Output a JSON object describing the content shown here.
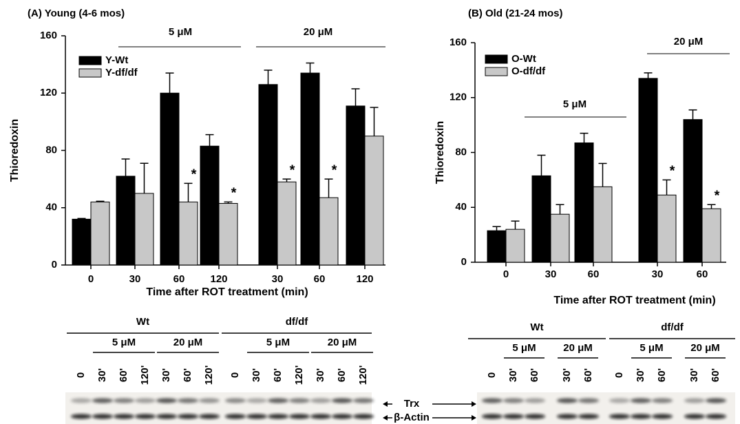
{
  "chart_data": [
    {
      "type": "bar",
      "title": "(A) Young (4-6 mos)",
      "y_label": "Thioredoxin",
      "x_label": "Time after ROT treatment (min)",
      "categories": [
        "0",
        "30",
        "60",
        "120",
        "30",
        "60",
        "120"
      ],
      "annotations": [
        "5 μM",
        "20 μM"
      ],
      "series": [
        {
          "name": "Y-Wt",
          "color": "#000000",
          "values": [
            32,
            62,
            120,
            83,
            126,
            134,
            111
          ],
          "errors": [
            0.5,
            12,
            14,
            8,
            10,
            7,
            12
          ]
        },
        {
          "name": "Y-df/df",
          "color": "#c8c8c8",
          "values": [
            44,
            50,
            44,
            43,
            58,
            47,
            90
          ],
          "errors": [
            0.5,
            21,
            13,
            1,
            2,
            13,
            20
          ],
          "labels": [
            null,
            null,
            "*",
            "*",
            "*",
            "*",
            null
          ]
        }
      ],
      "ylim": [
        0,
        160
      ],
      "yticks": [
        0,
        40,
        80,
        120,
        160
      ]
    },
    {
      "type": "bar",
      "title": "(B) Old (21-24 mos)",
      "y_label": "Thioredoxin",
      "x_label": "Time after ROT treatment (min)",
      "categories": [
        "0",
        "30",
        "60",
        "30",
        "60"
      ],
      "annotations": [
        "5 μM",
        "20 μM"
      ],
      "series": [
        {
          "name": "O-Wt",
          "color": "#000000",
          "values": [
            23,
            63,
            87,
            134,
            104
          ],
          "errors": [
            3,
            15,
            7,
            4,
            7
          ]
        },
        {
          "name": "O-df/df",
          "color": "#c8c8c8",
          "values": [
            24,
            35,
            55,
            49,
            39
          ],
          "errors": [
            6,
            7,
            17,
            11,
            3
          ],
          "labels": [
            null,
            null,
            null,
            "*",
            "*"
          ]
        }
      ],
      "ylim": [
        0,
        160
      ],
      "yticks": [
        0,
        40,
        80,
        120,
        160
      ]
    }
  ],
  "blots": [
    {
      "genotypes": [
        {
          "label": "Wt",
          "untreated": [
            "0"
          ],
          "doses": [
            {
              "label": "5 μM",
              "lanes": [
                "30'",
                "60'",
                "120'"
              ]
            },
            {
              "label": "20 μM",
              "lanes": [
                "30'",
                "60'",
                "120'"
              ]
            }
          ]
        },
        {
          "label": "df/df",
          "untreated": [
            "0"
          ],
          "doses": [
            {
              "label": "5 μM",
              "lanes": [
                "30'",
                "60'",
                "120'"
              ]
            },
            {
              "label": "20 μM",
              "lanes": [
                "30'",
                "60'",
                "120'"
              ]
            }
          ]
        }
      ]
    },
    {
      "genotypes": [
        {
          "label": "Wt",
          "untreated": [
            "0"
          ],
          "doses": [
            {
              "label": "5 μM",
              "lanes": [
                "30'",
                "60'"
              ]
            },
            {
              "label": "20 μM",
              "lanes": [
                "30'",
                "60'"
              ]
            }
          ]
        },
        {
          "label": "df/df",
          "untreated": [
            "0"
          ],
          "doses": [
            {
              "label": "5 μM",
              "lanes": [
                "30'",
                "60'"
              ]
            },
            {
              "label": "20 μM",
              "lanes": [
                "30'",
                "60'"
              ]
            }
          ]
        }
      ]
    }
  ],
  "blot_markers": [
    "Trx",
    "β-Actin"
  ]
}
